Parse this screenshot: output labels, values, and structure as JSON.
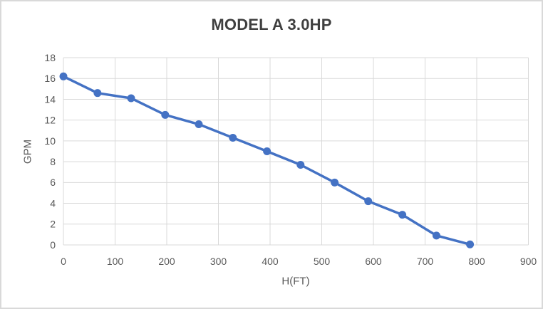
{
  "chart_data": {
    "type": "line",
    "title": "MODEL A 3.0HP",
    "xlabel": "H(FT)",
    "ylabel": "GPM",
    "x": [
      0,
      66,
      131,
      197,
      262,
      328,
      394,
      459,
      525,
      590,
      656,
      722,
      787
    ],
    "series": [
      {
        "name": "GPM",
        "values": [
          16.2,
          14.6,
          14.1,
          12.5,
          11.6,
          10.3,
          9.0,
          7.7,
          6.0,
          4.2,
          2.9,
          0.9,
          0.05
        ]
      }
    ],
    "xlim": [
      0,
      900
    ],
    "ylim": [
      0,
      18
    ],
    "x_ticks": [
      0,
      100,
      200,
      300,
      400,
      500,
      600,
      700,
      800,
      900
    ],
    "y_ticks": [
      0,
      2,
      4,
      6,
      8,
      10,
      12,
      14,
      16,
      18
    ],
    "grid": "both",
    "legend": "none",
    "marker": "circle",
    "colors": {
      "series_line": "#4472C4",
      "gridline": "#d9d9d9",
      "tick_label": "#595959",
      "axis_title": "#595959",
      "chart_title": "#3f3f3f",
      "frame_border": "#d9d9d9",
      "background": "#ffffff"
    }
  }
}
